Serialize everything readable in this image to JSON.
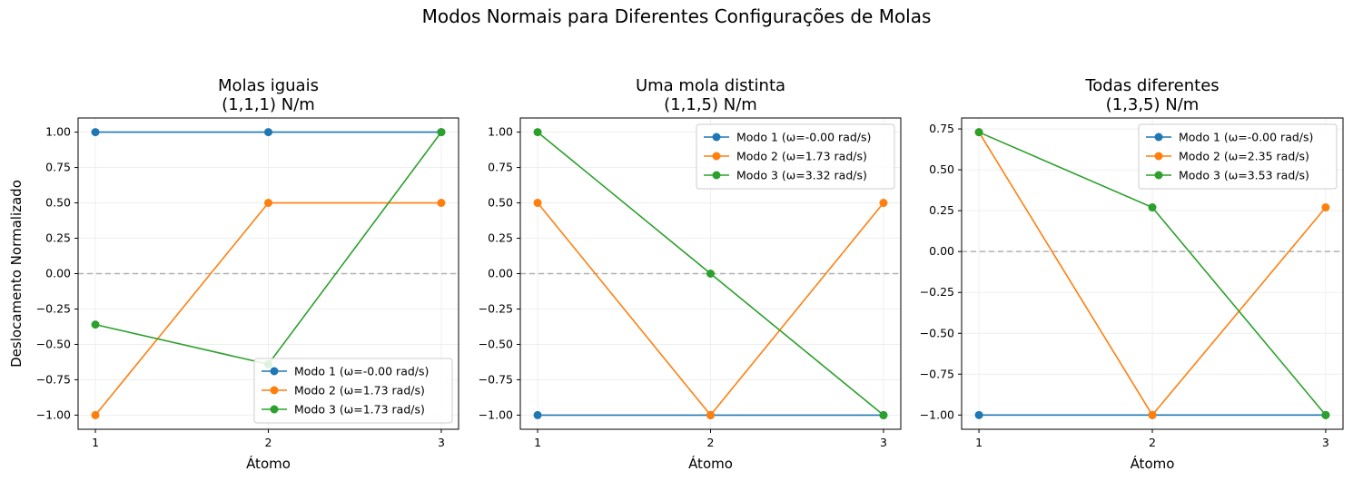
{
  "suptitle": "Modos Normais para Diferentes Configurações de Molas",
  "colors": {
    "series": [
      "#1f77b4",
      "#ff7f0e",
      "#2ca02c"
    ],
    "zero_line": "#b0b0b0",
    "grid": "#ebebeb"
  },
  "chart_data": [
    {
      "type": "line",
      "title": "Molas iguais",
      "subtitle": "(1,1,1) N/m",
      "xlabel": "Átomo",
      "ylabel": "Deslocamento Normalizado",
      "x": [
        1,
        2,
        3
      ],
      "xticks": [
        "1",
        "2",
        "3"
      ],
      "xlim": [
        0.9,
        3.1
      ],
      "ylim": [
        -1.1,
        1.1
      ],
      "yticks": [
        "1.00",
        "0.75",
        "0.50",
        "0.25",
        "0.00",
        "−0.25",
        "−0.50",
        "−0.75",
        "−1.00"
      ],
      "ytick_values": [
        1.0,
        0.75,
        0.5,
        0.25,
        0.0,
        -0.25,
        -0.5,
        -0.75,
        -1.0
      ],
      "grid": true,
      "zero_line": true,
      "legend_position": "bottom-right",
      "series": [
        {
          "name": "Modo 1 (ω=-0.00 rad/s)",
          "values": [
            1.0,
            1.0,
            1.0
          ]
        },
        {
          "name": "Modo 2 (ω=1.73 rad/s)",
          "values": [
            -1.0,
            0.5,
            0.5
          ]
        },
        {
          "name": "Modo 3 (ω=1.73 rad/s)",
          "values": [
            -0.36,
            -0.64,
            1.0
          ]
        }
      ]
    },
    {
      "type": "line",
      "title": "Uma mola distinta",
      "subtitle": "(1,1,5) N/m",
      "xlabel": "Átomo",
      "ylabel": "",
      "x": [
        1,
        2,
        3
      ],
      "xticks": [
        "1",
        "2",
        "3"
      ],
      "xlim": [
        0.9,
        3.1
      ],
      "ylim": [
        -1.1,
        1.1
      ],
      "yticks": [
        "1.00",
        "0.75",
        "0.50",
        "0.25",
        "0.00",
        "−0.25",
        "−0.50",
        "−0.75",
        "−1.00"
      ],
      "ytick_values": [
        1.0,
        0.75,
        0.5,
        0.25,
        0.0,
        -0.25,
        -0.5,
        -0.75,
        -1.0
      ],
      "grid": true,
      "zero_line": true,
      "legend_position": "top-right",
      "series": [
        {
          "name": "Modo 1 (ω=-0.00 rad/s)",
          "values": [
            -1.0,
            -1.0,
            -1.0
          ]
        },
        {
          "name": "Modo 2 (ω=1.73 rad/s)",
          "values": [
            0.5,
            -1.0,
            0.5
          ]
        },
        {
          "name": "Modo 3 (ω=3.32 rad/s)",
          "values": [
            1.0,
            0.0,
            -1.0
          ]
        }
      ]
    },
    {
      "type": "line",
      "title": "Todas diferentes",
      "subtitle": "(1,3,5) N/m",
      "xlabel": "Átomo",
      "ylabel": "",
      "x": [
        1,
        2,
        3
      ],
      "xticks": [
        "1",
        "2",
        "3"
      ],
      "xlim": [
        0.9,
        3.1
      ],
      "ylim": [
        -1.087,
        0.817
      ],
      "yticks": [
        "0.75",
        "0.50",
        "0.25",
        "0.00",
        "−0.25",
        "−0.50",
        "−0.75",
        "−1.00"
      ],
      "ytick_values": [
        0.75,
        0.5,
        0.25,
        0.0,
        -0.25,
        -0.5,
        -0.75,
        -1.0
      ],
      "grid": true,
      "zero_line": true,
      "legend_position": "top-right",
      "series": [
        {
          "name": "Modo 1 (ω=-0.00 rad/s)",
          "values": [
            -1.0,
            -1.0,
            -1.0
          ]
        },
        {
          "name": "Modo 2 (ω=2.35 rad/s)",
          "values": [
            0.73,
            -1.0,
            0.27
          ]
        },
        {
          "name": "Modo 3 (ω=3.53 rad/s)",
          "values": [
            0.73,
            0.27,
            -1.0
          ]
        }
      ]
    }
  ]
}
